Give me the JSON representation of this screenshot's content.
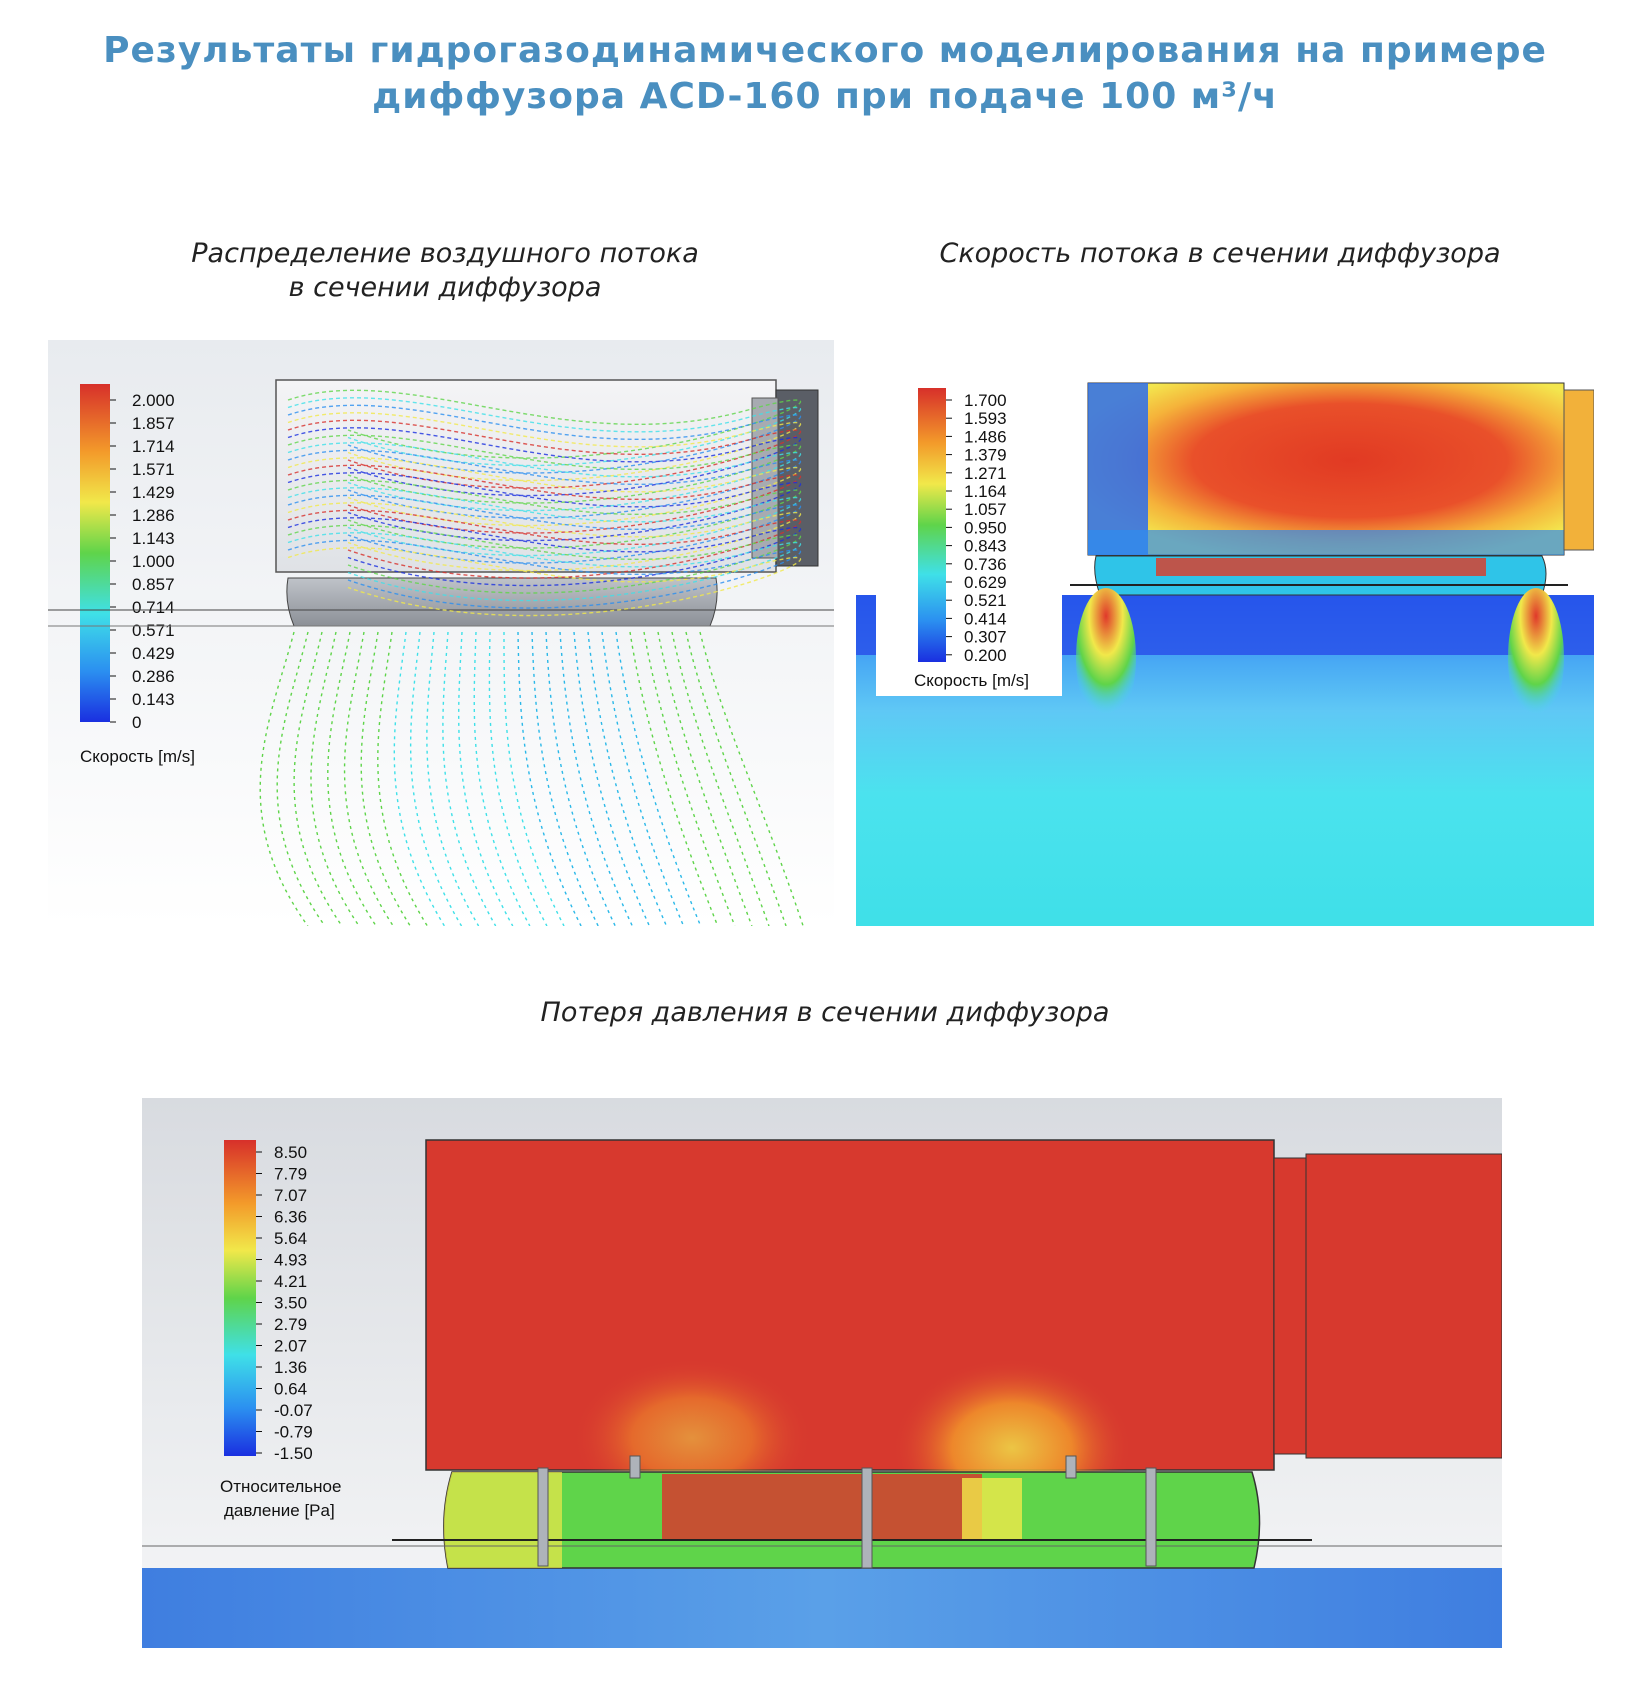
{
  "header": {
    "title_line1": "Результаты гидрогазодинамического моделирования на примере",
    "title_line2": "диффузора ACD-160 при подаче 100 м³/ч"
  },
  "panels": {
    "airflow": {
      "caption_line1": "Распределение воздушного потока",
      "caption_line2": "в сечении диффузора",
      "legend_title": "Скорость [m/s]",
      "legend_values": [
        "2.000",
        "1.857",
        "1.714",
        "1.571",
        "1.429",
        "1.286",
        "1.143",
        "1.000",
        "0.857",
        "0.714",
        "0.571",
        "0.429",
        "0.286",
        "0.143",
        "0"
      ]
    },
    "velocity": {
      "caption": "Скорость потока в сечении диффузора",
      "legend_title": "Скорость [m/s]",
      "legend_values": [
        "1.700",
        "1.593",
        "1.486",
        "1.379",
        "1.271",
        "1.164",
        "1.057",
        "0.950",
        "0.843",
        "0.736",
        "0.629",
        "0.521",
        "0.414",
        "0.307",
        "0.200"
      ]
    },
    "pressure": {
      "caption": "Потеря давления в сечении диффузора",
      "legend_title_line1": "Относительное",
      "legend_title_line2": "давление [Pa]",
      "legend_values": [
        "8.50",
        "7.79",
        "7.07",
        "6.36",
        "5.64",
        "4.93",
        "4.21",
        "3.50",
        "2.79",
        "2.07",
        "1.36",
        "0.64",
        "-0.07",
        "-0.79",
        "-1.50"
      ]
    }
  },
  "colors": {
    "title": "#4a8fc0",
    "red": "#d7392e",
    "blue_deep": "#1a2fe0",
    "cyan": "#3fe0e8",
    "green": "#5fd44a",
    "yellow": "#f1e84a"
  }
}
